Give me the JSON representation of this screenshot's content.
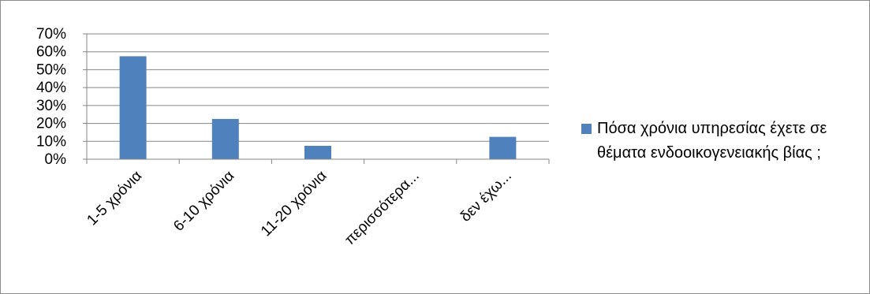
{
  "chart_data": {
    "type": "bar",
    "categories": [
      "1-5 χρόνια",
      "6-10 χρόνια",
      "11-20 χρόνια",
      "περισσότερα...",
      "δεν έχω..."
    ],
    "series": [
      {
        "name": "Πόσα χρόνια υπηρεσίας έχετε σε θέματα ενδοοικογενειακής βίας ;",
        "values": [
          0.575,
          0.225,
          0.075,
          0,
          0.125
        ],
        "color": "#4f81bd"
      }
    ],
    "y_ticks": [
      "0%",
      "10%",
      "20%",
      "30%",
      "40%",
      "50%",
      "60%",
      "70%"
    ],
    "ylim": [
      0,
      0.7
    ],
    "grid": true,
    "legend_position": "right"
  }
}
